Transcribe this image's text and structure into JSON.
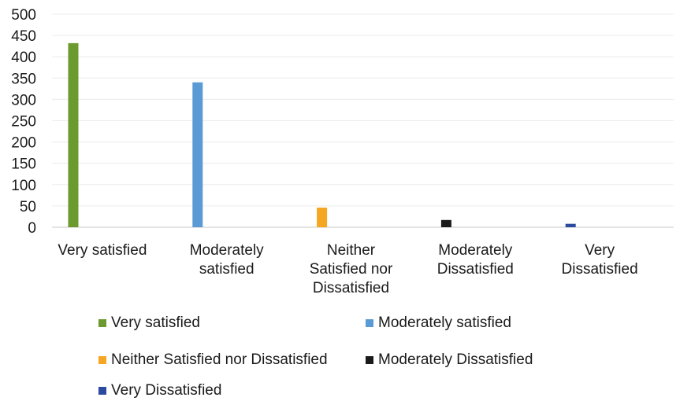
{
  "chart_data": {
    "type": "bar",
    "categories": [
      [
        "Very satisfied"
      ],
      [
        "Moderately",
        "satisfied"
      ],
      [
        "Neither",
        "Satisfied nor",
        "Dissatisfied"
      ],
      [
        "Moderately",
        "Dissatisfied"
      ],
      [
        "Very",
        "Dissatisfied"
      ]
    ],
    "series": [
      {
        "name": "Very satisfied",
        "color": "#6b9a2e",
        "values": [
          432,
          0,
          0,
          0,
          0
        ]
      },
      {
        "name": "Moderately satisfied",
        "color": "#5b9bd5",
        "values": [
          0,
          340,
          0,
          0,
          0
        ]
      },
      {
        "name": "Neither Satisfied nor Dissatisfied",
        "color": "#f5a623",
        "values": [
          0,
          0,
          46,
          0,
          0
        ]
      },
      {
        "name": "Moderately Dissatisfied",
        "color": "#1a1a1a",
        "values": [
          0,
          0,
          0,
          17,
          0
        ]
      },
      {
        "name": "Very Dissatisfied",
        "color": "#2b4aa0",
        "values": [
          0,
          0,
          0,
          0,
          8
        ]
      }
    ],
    "ylim": [
      0,
      500
    ],
    "yticks": [
      "0",
      "50",
      "100",
      "150",
      "200",
      "250",
      "300",
      "350",
      "400",
      "450",
      "500"
    ],
    "grid": true,
    "legend_position": "bottom"
  }
}
